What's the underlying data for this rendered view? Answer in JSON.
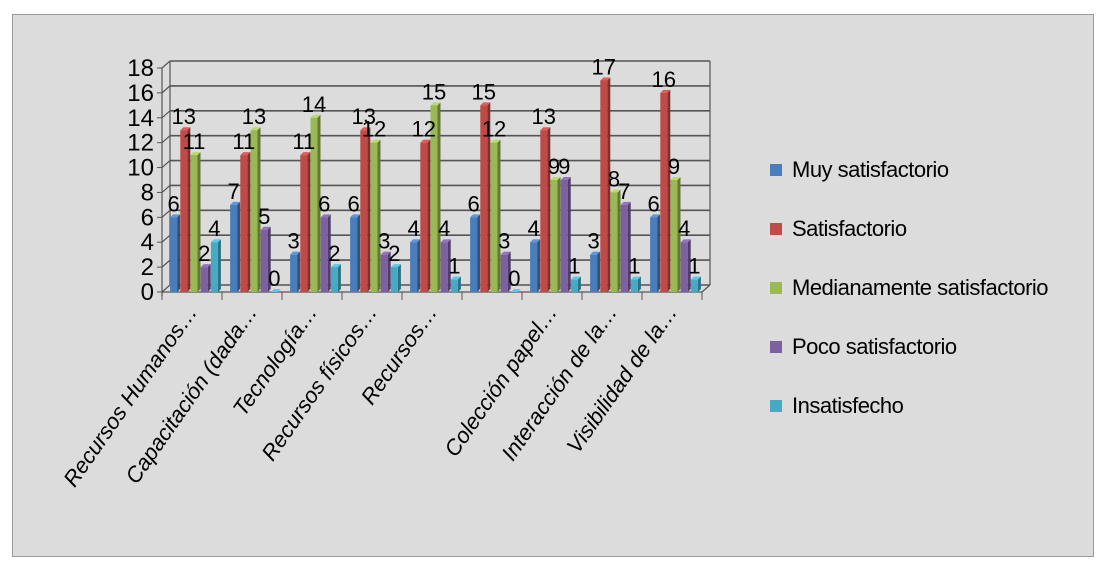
{
  "chart_data": {
    "type": "bar",
    "categories": [
      "Recursos Humanos…",
      "Capacitación (dada…",
      "Tecnología…",
      "Recursos físicos…",
      "Recursos…",
      "",
      "Colección papel…",
      "Interacción de la…",
      "Visibilidad de la…"
    ],
    "series": [
      {
        "name": "Muy satisfactorio",
        "color": "#4a7ebb",
        "values": [
          6,
          7,
          3,
          6,
          4,
          6,
          4,
          3,
          6
        ]
      },
      {
        "name": "Satisfactorio",
        "color": "#be4b48",
        "values": [
          13,
          11,
          11,
          13,
          12,
          15,
          13,
          17,
          16
        ]
      },
      {
        "name": "Medianamente satisfactorio",
        "color": "#98b954",
        "values": [
          11,
          13,
          14,
          12,
          15,
          12,
          9,
          8,
          9
        ]
      },
      {
        "name": "Poco satisfactorio",
        "color": "#7d60a0",
        "values": [
          2,
          5,
          6,
          3,
          4,
          3,
          9,
          7,
          4
        ]
      },
      {
        "name": "Insatisfecho",
        "color": "#46aac5",
        "values": [
          4,
          0,
          2,
          2,
          1,
          0,
          1,
          1,
          1
        ]
      }
    ],
    "yticks": [
      "0",
      "2",
      "4",
      "6",
      "8",
      "10",
      "12",
      "14",
      "16",
      "18"
    ],
    "ylim": [
      0,
      18
    ],
    "title": "",
    "xlabel": "",
    "ylabel": "",
    "grid": true,
    "legend_position": "right",
    "style": "3d-clustered-column"
  }
}
